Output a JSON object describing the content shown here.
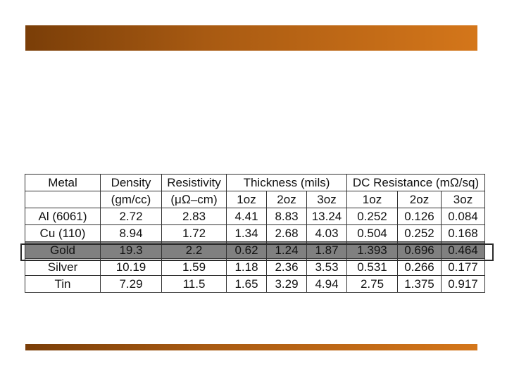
{
  "table": {
    "header1": [
      "Metal",
      "Density",
      "Resistivity",
      "Thickness (mils)",
      "DC Resistance (mΩ/sq)"
    ],
    "header2": [
      "",
      "(gm/cc)",
      "(μΩ–cm)",
      "1oz",
      "2oz",
      "3oz",
      "1oz",
      "2oz",
      "3oz"
    ],
    "rows": [
      [
        "Al (6061)",
        "2.72",
        "2.83",
        "4.41",
        "8.83",
        "13.24",
        "0.252",
        "0.126",
        "0.084"
      ],
      [
        "Cu (110)",
        "8.94",
        "1.72",
        "1.34",
        "2.68",
        "4.03",
        "0.504",
        "0.252",
        "0.168"
      ],
      [
        "Gold",
        "19.3",
        "2.2",
        "0.62",
        "1.24",
        "1.87",
        "1.393",
        "0.696",
        "0.464"
      ],
      [
        "Silver",
        "10.19",
        "1.59",
        "1.18",
        "2.36",
        "3.53",
        "0.531",
        "0.266",
        "0.177"
      ],
      [
        "Tin",
        "7.29",
        "11.5",
        "1.65",
        "3.29",
        "4.94",
        "2.75",
        "1.375",
        "0.917"
      ]
    ]
  },
  "highlighted_row": "Gold",
  "colors": {
    "bar_dark": "#7a3e08",
    "bar_light": "#d4761a",
    "highlight_fill": "#808080"
  }
}
